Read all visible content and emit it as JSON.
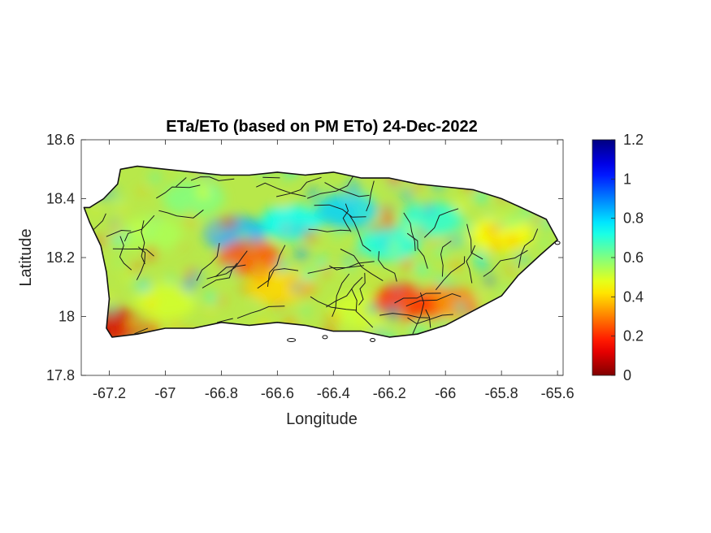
{
  "chart_data": {
    "type": "heatmap",
    "title": "ETa/ETo (based on PM ETo) 24-Dec-2022",
    "xlabel": "Longitude",
    "ylabel": "Latitude",
    "xlim": [
      -67.3,
      -65.58
    ],
    "ylim": [
      17.8,
      18.6
    ],
    "xticks": [
      -67.2,
      -67,
      -66.8,
      -66.6,
      -66.4,
      -66.2,
      -66,
      -65.8,
      -65.6
    ],
    "xtick_labels": [
      "-67.2",
      "-67",
      "-66.8",
      "-66.6",
      "-66.4",
      "-66.2",
      "-66",
      "-65.8",
      "-65.6"
    ],
    "yticks": [
      17.8,
      18,
      18.2,
      18.4,
      18.6
    ],
    "ytick_labels": [
      "17.8",
      "18",
      "18.2",
      "18.4",
      "18.6"
    ],
    "colorbar": {
      "colormap": "jet",
      "range": [
        0,
        1.2
      ],
      "ticks": [
        0,
        0.2,
        0.4,
        0.6,
        0.8,
        1,
        1.2
      ],
      "tick_labels": [
        "0",
        "0.2",
        "0.4",
        "0.6",
        "0.8",
        "1",
        "1.2"
      ]
    },
    "grid": false,
    "region": "Puerto Rico (municipality boundaries)",
    "coastline": [
      [
        -67.27,
        18.37
      ],
      [
        -67.22,
        18.4
      ],
      [
        -67.17,
        18.45
      ],
      [
        -67.16,
        18.5
      ],
      [
        -67.1,
        18.51
      ],
      [
        -67.0,
        18.5
      ],
      [
        -66.9,
        18.49
      ],
      [
        -66.8,
        18.48
      ],
      [
        -66.7,
        18.48
      ],
      [
        -66.6,
        18.49
      ],
      [
        -66.5,
        18.48
      ],
      [
        -66.4,
        18.49
      ],
      [
        -66.3,
        18.47
      ],
      [
        -66.2,
        18.47
      ],
      [
        -66.1,
        18.45
      ],
      [
        -66.0,
        18.44
      ],
      [
        -65.9,
        18.43
      ],
      [
        -65.8,
        18.4
      ],
      [
        -65.73,
        18.37
      ],
      [
        -65.64,
        18.33
      ],
      [
        -65.6,
        18.26
      ],
      [
        -65.66,
        18.21
      ],
      [
        -65.74,
        18.14
      ],
      [
        -65.8,
        18.07
      ],
      [
        -65.9,
        18.02
      ],
      [
        -66.0,
        17.97
      ],
      [
        -66.1,
        17.94
      ],
      [
        -66.2,
        17.93
      ],
      [
        -66.3,
        17.95
      ],
      [
        -66.4,
        17.95
      ],
      [
        -66.5,
        17.97
      ],
      [
        -66.6,
        17.98
      ],
      [
        -66.7,
        17.97
      ],
      [
        -66.8,
        17.98
      ],
      [
        -66.9,
        17.96
      ],
      [
        -67.0,
        17.96
      ],
      [
        -67.1,
        17.94
      ],
      [
        -67.19,
        17.93
      ],
      [
        -67.21,
        17.96
      ],
      [
        -67.2,
        18.06
      ],
      [
        -67.21,
        18.15
      ],
      [
        -67.23,
        18.24
      ],
      [
        -67.27,
        18.32
      ],
      [
        -67.29,
        18.37
      ]
    ],
    "value_regions": [
      {
        "lon": -67.05,
        "lat": 18.28,
        "value": 0.55
      },
      {
        "lon": -66.9,
        "lat": 18.4,
        "value": 0.6
      },
      {
        "lon": -66.75,
        "lat": 18.28,
        "value": 0.85
      },
      {
        "lon": -66.55,
        "lat": 18.32,
        "value": 0.75
      },
      {
        "lon": -66.35,
        "lat": 18.36,
        "value": 0.8
      },
      {
        "lon": -66.2,
        "lat": 18.25,
        "value": 0.72
      },
      {
        "lon": -66.05,
        "lat": 18.33,
        "value": 0.7
      },
      {
        "lon": -65.8,
        "lat": 18.28,
        "value": 0.45
      },
      {
        "lon": -66.0,
        "lat": 18.05,
        "value": 0.3
      },
      {
        "lon": -66.3,
        "lat": 18.02,
        "value": 0.5
      },
      {
        "lon": -66.6,
        "lat": 18.1,
        "value": 0.4
      },
      {
        "lon": -67.0,
        "lat": 18.05,
        "value": 0.5
      },
      {
        "lon": -67.18,
        "lat": 17.97,
        "value": 0.1
      },
      {
        "lon": -66.7,
        "lat": 18.2,
        "value": 0.25
      },
      {
        "lon": -66.15,
        "lat": 18.05,
        "value": 0.2
      }
    ]
  }
}
